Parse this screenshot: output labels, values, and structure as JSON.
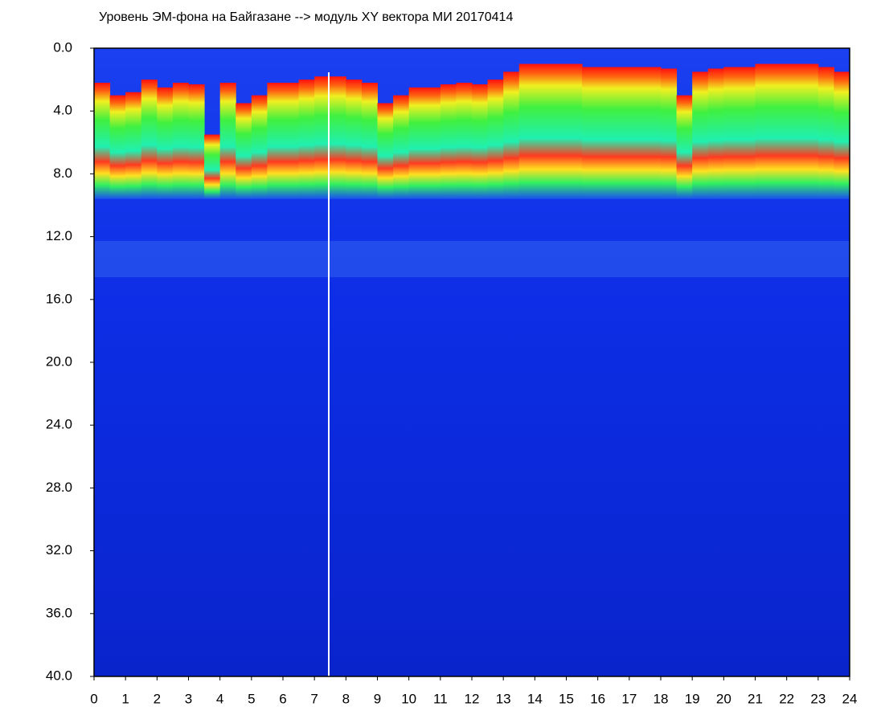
{
  "chart_data": {
    "type": "spectrogram",
    "title": "Уровень ЭМ-фона на Байгазане  -->  модуль XY вектора МИ  20170414",
    "x": [
      0,
      0.5,
      1,
      1.5,
      2,
      2.5,
      3,
      3.5,
      4,
      4.5,
      5,
      5.5,
      6,
      6.5,
      7,
      7.5,
      8,
      8.5,
      9,
      9.5,
      10,
      10.5,
      11,
      11.5,
      12,
      12.5,
      13,
      13.5,
      14,
      14.5,
      15,
      15.5,
      16,
      16.5,
      17,
      17.5,
      18,
      18.5,
      19,
      19.5,
      20,
      20.5,
      21,
      21.5,
      22,
      22.5,
      23,
      23.5
    ],
    "values": [
      2.2,
      3.0,
      2.8,
      2.0,
      2.5,
      2.2,
      2.3,
      5.5,
      2.2,
      3.5,
      3.0,
      2.2,
      2.2,
      2.0,
      1.8,
      1.8,
      2.0,
      2.2,
      3.5,
      3.0,
      2.5,
      2.5,
      2.3,
      2.2,
      2.3,
      2.0,
      1.5,
      1.0,
      1.0,
      1.0,
      1.0,
      1.2,
      1.2,
      1.2,
      1.2,
      1.2,
      1.3,
      3.0,
      1.5,
      1.3,
      1.2,
      1.2,
      1.0,
      1.0,
      1.0,
      1.0,
      1.2,
      1.5
    ],
    "xlim": [
      0,
      24
    ],
    "ylim": [
      0,
      40
    ],
    "y_inverted": true,
    "xticks": [
      0,
      1,
      2,
      3,
      4,
      5,
      6,
      7,
      8,
      9,
      10,
      11,
      12,
      13,
      14,
      15,
      16,
      17,
      18,
      19,
      20,
      21,
      22,
      23,
      24
    ],
    "yticks": [
      {
        "value": 0,
        "label": "0.0"
      },
      {
        "value": 4,
        "label": "4.0"
      },
      {
        "value": 8,
        "label": "8.0"
      },
      {
        "value": 12,
        "label": "12.0"
      },
      {
        "value": 16,
        "label": "16.0"
      },
      {
        "value": 20,
        "label": "20.0"
      },
      {
        "value": 24,
        "label": "24.0"
      },
      {
        "value": 28,
        "label": "28.0"
      },
      {
        "value": 32,
        "label": "32.0"
      },
      {
        "value": 36,
        "label": "36.0"
      },
      {
        "value": 40,
        "label": "40.0"
      }
    ]
  }
}
